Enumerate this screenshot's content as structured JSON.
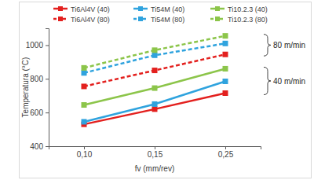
{
  "chart_data": {
    "type": "line",
    "x_label": "fv (mm/rev)",
    "y_label": "Temperatura (°C)",
    "categories": [
      "0,10",
      "0,15",
      "0,25"
    ],
    "series": [
      {
        "name": "Ti6Al4V (40)",
        "color": "#e3201e",
        "marker": "square",
        "line_style": "solid",
        "values": [
          530,
          620,
          715
        ]
      },
      {
        "name": "Ti54M (40)",
        "color": "#2fa3de",
        "marker": "square",
        "line_style": "solid",
        "values": [
          545,
          650,
          785
        ]
      },
      {
        "name": "Ti10.2.3 (40)",
        "color": "#8cc54a",
        "marker": "square",
        "line_style": "solid",
        "values": [
          645,
          745,
          860
        ]
      },
      {
        "name": "Ti6Al4V (80)",
        "color": "#e3201e",
        "marker": "square",
        "line_style": "dashed",
        "values": [
          755,
          850,
          945
        ]
      },
      {
        "name": "Ti54M (80)",
        "color": "#2fa3de",
        "marker": "square",
        "line_style": "dashed",
        "values": [
          835,
          940,
          1010
        ]
      },
      {
        "name": "Ti10.2.3 (80)",
        "color": "#8cc54a",
        "marker": "square",
        "line_style": "dashed",
        "values": [
          865,
          970,
          1055
        ]
      }
    ],
    "ylim": [
      400,
      1100
    ],
    "yticks": [
      400,
      600,
      800,
      1000
    ],
    "grid": false,
    "legend": "top",
    "annotations": [
      "80 m/min",
      "40 m/min"
    ]
  }
}
